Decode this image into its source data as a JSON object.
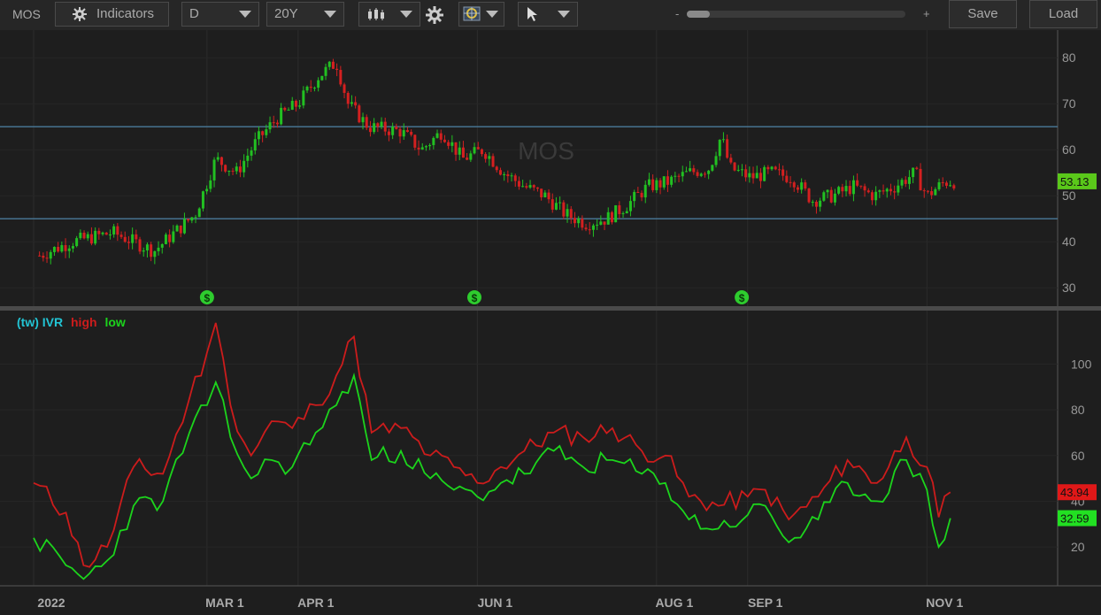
{
  "toolbar": {
    "symbol": "MOS",
    "indicators_label": "Indicators",
    "interval": "D",
    "range": "20Y",
    "zoom_minus": "-",
    "zoom_plus": "+",
    "zoom_level": 0.1,
    "save_label": "Save",
    "load_label": "Load",
    "icons": [
      "indicators-gear-icon",
      "candlestick-icon",
      "settings-gear-icon",
      "drawing-tools-icon",
      "cursor-arrow-icon"
    ]
  },
  "x_axis_labels": [
    "2022",
    "MAR 1",
    "APR 1",
    "JUN 1",
    "AUG 1",
    "SEP 1",
    "NOV 1"
  ],
  "colors": {
    "up": "#22c022",
    "down": "#d42020",
    "high": "#cc1c1c",
    "low": "#1cd41c",
    "hline": "#4a7a9a",
    "title_cyan": "#22c4d4",
    "background": "#1e1e1e"
  },
  "chart_data": [
    {
      "type": "candlestick",
      "title": "MOS",
      "xlabels": [
        "2022",
        "MAR 1",
        "APR 1",
        "JUN 1",
        "AUG 1",
        "SEP 1",
        "NOV 1"
      ],
      "x": [
        "2022-01-03",
        "2022-01-14",
        "2022-01-28",
        "2022-02-11",
        "2022-02-25",
        "2022-03-04",
        "2022-03-11",
        "2022-03-18",
        "2022-03-25",
        "2022-04-01",
        "2022-04-08",
        "2022-04-14",
        "2022-04-18",
        "2022-04-25",
        "2022-05-06",
        "2022-05-13",
        "2022-05-20",
        "2022-05-27",
        "2022-06-03",
        "2022-06-10",
        "2022-06-17",
        "2022-06-24",
        "2022-07-01",
        "2022-07-08",
        "2022-07-15",
        "2022-07-22",
        "2022-07-29",
        "2022-08-05",
        "2022-08-12",
        "2022-08-19",
        "2022-08-23",
        "2022-08-26",
        "2022-09-02",
        "2022-09-09",
        "2022-09-16",
        "2022-09-23",
        "2022-09-30",
        "2022-10-07",
        "2022-10-14",
        "2022-10-21",
        "2022-10-28",
        "2022-11-01",
        "2022-11-07",
        "2022-11-11"
      ],
      "y": [
        37,
        40,
        42,
        38,
        46,
        58,
        55,
        62,
        67,
        70,
        76,
        79,
        70,
        65,
        64,
        60,
        64,
        58,
        60,
        55,
        52,
        50,
        46,
        44,
        45,
        48,
        52,
        53,
        55,
        56,
        63,
        56,
        54,
        55,
        54,
        49,
        50,
        52,
        50,
        52,
        55,
        50,
        53,
        53.13
      ],
      "ylim": [
        26,
        86
      ],
      "yticks": [
        30,
        40,
        50,
        60,
        70,
        80
      ],
      "hlines": [
        45,
        65
      ],
      "dividend_markers": [
        "2022-03-01",
        "2022-05-31",
        "2022-08-30"
      ],
      "last_value": "53.13"
    },
    {
      "type": "line",
      "title": "(tw) IVR high low",
      "xlabels": [
        "2022",
        "MAR 1",
        "APR 1",
        "JUN 1",
        "AUG 1",
        "SEP 1",
        "NOV 1"
      ],
      "series": [
        {
          "name": "high",
          "x": [
            "2022-01-01",
            "2022-01-12",
            "2022-01-18",
            "2022-01-26",
            "2022-02-04",
            "2022-02-14",
            "2022-02-23",
            "2022-03-01",
            "2022-03-04",
            "2022-03-09",
            "2022-03-16",
            "2022-03-23",
            "2022-03-30",
            "2022-04-07",
            "2022-04-14",
            "2022-04-20",
            "2022-04-26",
            "2022-05-06",
            "2022-05-16",
            "2022-05-24",
            "2022-06-01",
            "2022-06-09",
            "2022-06-17",
            "2022-06-27",
            "2022-07-07",
            "2022-07-17",
            "2022-07-27",
            "2022-08-04",
            "2022-08-12",
            "2022-08-22",
            "2022-09-01",
            "2022-09-07",
            "2022-09-15",
            "2022-09-25",
            "2022-10-05",
            "2022-10-15",
            "2022-10-25",
            "2022-11-01",
            "2022-11-05",
            "2022-11-09"
          ],
          "y": [
            48,
            35,
            12,
            20,
            55,
            52,
            85,
            105,
            118,
            82,
            60,
            75,
            72,
            82,
            95,
            112,
            70,
            72,
            60,
            55,
            48,
            55,
            62,
            70,
            68,
            72,
            62,
            60,
            42,
            38,
            42,
            45,
            32,
            42,
            58,
            48,
            68,
            55,
            33,
            43.94
          ]
        },
        {
          "name": "low",
          "x": [
            "2022-01-01",
            "2022-01-12",
            "2022-01-18",
            "2022-01-26",
            "2022-02-04",
            "2022-02-14",
            "2022-02-23",
            "2022-03-01",
            "2022-03-04",
            "2022-03-09",
            "2022-03-16",
            "2022-03-23",
            "2022-03-30",
            "2022-04-07",
            "2022-04-14",
            "2022-04-20",
            "2022-04-26",
            "2022-05-06",
            "2022-05-16",
            "2022-05-24",
            "2022-06-01",
            "2022-06-09",
            "2022-06-17",
            "2022-06-27",
            "2022-07-07",
            "2022-07-17",
            "2022-07-27",
            "2022-08-04",
            "2022-08-12",
            "2022-08-22",
            "2022-09-01",
            "2022-09-07",
            "2022-09-15",
            "2022-09-25",
            "2022-10-05",
            "2022-10-15",
            "2022-10-25",
            "2022-11-01",
            "2022-11-05",
            "2022-11-09"
          ],
          "y": [
            24,
            12,
            6,
            14,
            38,
            40,
            70,
            82,
            92,
            68,
            50,
            58,
            55,
            70,
            82,
            95,
            58,
            62,
            50,
            45,
            42,
            48,
            52,
            62,
            55,
            58,
            52,
            48,
            32,
            28,
            34,
            38,
            22,
            32,
            48,
            40,
            58,
            45,
            20,
            32.59
          ]
        }
      ],
      "ylim": [
        3,
        123
      ],
      "yticks": [
        20,
        40,
        60,
        80,
        100
      ],
      "last_high": "43.94",
      "last_low": "32.59"
    }
  ],
  "ivr_title": {
    "tw": "(tw) IVR",
    "high": "high",
    "low": "low"
  }
}
